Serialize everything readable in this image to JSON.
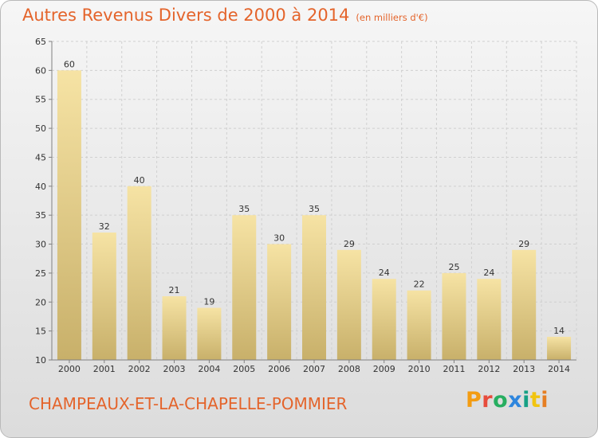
{
  "header": {
    "title": "Autres Revenus Divers de 2000 à 2014",
    "unit_note": "(en milliers d'€)"
  },
  "footer": {
    "commune": "CHAMPEAUX-ET-LA-CHAPELLE-POMMIER",
    "logo_text": "Proxiti"
  },
  "colors": {
    "accent": "#e4642b",
    "bar_light": "#f6e3a4",
    "bar_dark": "#c8b06a",
    "grid": "#d0d0d0",
    "axis": "#808080",
    "logo_letters": [
      "#f39c12",
      "#e74c3c",
      "#27ae60",
      "#2e86de",
      "#16a085",
      "#f1c40f",
      "#e67e22"
    ]
  },
  "chart_data": {
    "type": "bar",
    "title": "Autres Revenus Divers de 2000 à 2014",
    "subtitle": "(en milliers d'€)",
    "xlabel": "",
    "ylabel": "",
    "categories": [
      "2000",
      "2001",
      "2002",
      "2003",
      "2004",
      "2005",
      "2006",
      "2007",
      "2008",
      "2009",
      "2010",
      "2011",
      "2012",
      "2013",
      "2014"
    ],
    "values": [
      60,
      32,
      40,
      21,
      19,
      35,
      30,
      35,
      29,
      24,
      22,
      25,
      24,
      29,
      14
    ],
    "ylim": [
      10,
      65
    ],
    "yticks": [
      10,
      15,
      20,
      25,
      30,
      35,
      40,
      45,
      50,
      55,
      60,
      65
    ],
    "grid": true,
    "legend": "none"
  }
}
